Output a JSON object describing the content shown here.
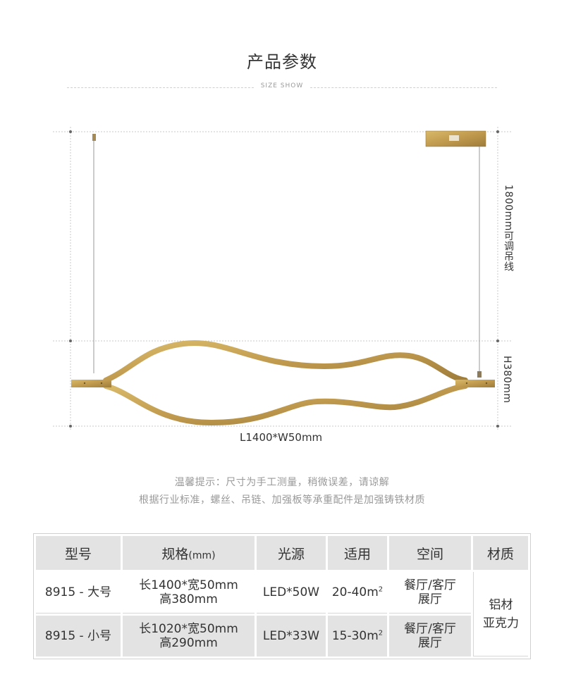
{
  "header": {
    "title": "产品参数",
    "subtitle": "SIZE SHOW"
  },
  "diagram": {
    "height_label": "1800mm可调吊线",
    "body_height_label": "H380mm",
    "width_label": "L1400*W50mm"
  },
  "notes": {
    "line1": "温馨提示：尺寸为手工测量，稍微误差，请谅解",
    "line2": "根据行业标准，螺丝、吊链、加强板等承重配件是加强铸铁材质"
  },
  "table": {
    "headers": {
      "model": "型号",
      "spec": "规格",
      "spec_unit": "(mm)",
      "light": "光源",
      "area": "适用",
      "space": "空间",
      "material": "材质"
    },
    "rows": [
      {
        "model": "8915 - 大号",
        "spec_line1": "长1400*宽50mm",
        "spec_line2": "高380mm",
        "light": "LED*50W",
        "area": "20-40m",
        "area_sup": "2",
        "space_line1": "餐厅/客厅",
        "space_line2": "展厅"
      },
      {
        "model": "8915 - 小号",
        "spec_line1": "长1020*宽50mm",
        "spec_line2": "高290mm",
        "light": "LED*33W",
        "area": "15-30m",
        "area_sup": "2",
        "space_line1": "餐厅/客厅",
        "space_line2": "展厅"
      }
    ],
    "material_line1": "铝材",
    "material_line2": "亚克力"
  },
  "colors": {
    "gold": "#c9a55a",
    "gold_dark": "#a6843f",
    "cell_gray": "#e3e3e3"
  }
}
